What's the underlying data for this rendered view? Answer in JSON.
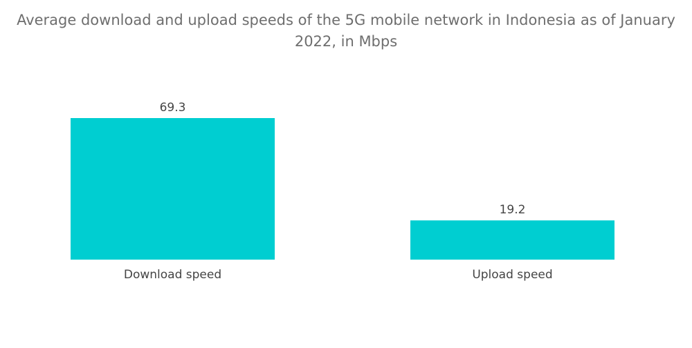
{
  "chart_data": {
    "type": "bar",
    "title": "Average download and upload speeds of the 5G mobile network in Indonesia as of January 2022, in Mbps",
    "categories": [
      "Download speed",
      "Upload speed"
    ],
    "values": [
      69.3,
      19.2
    ],
    "value_labels": [
      "69.3",
      "19.2"
    ],
    "xlabel": "",
    "ylabel": "",
    "ylim": [
      0,
      69.3
    ],
    "grid": false,
    "legend": "none",
    "colors": {
      "bar": "#00CED1"
    }
  }
}
